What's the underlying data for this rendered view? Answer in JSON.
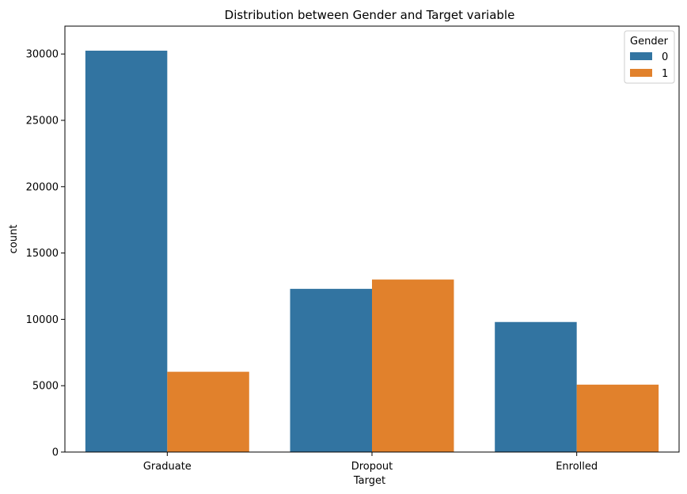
{
  "chart_data": {
    "type": "bar",
    "title": "Distribution between Gender and Target variable",
    "xlabel": "Target",
    "ylabel": "count",
    "categories": [
      "Graduate",
      "Dropout",
      "Enrolled"
    ],
    "series": [
      {
        "name": "0",
        "values": [
          30250,
          12300,
          9800
        ],
        "color": "#3274a1"
      },
      {
        "name": "1",
        "values": [
          6050,
          13000,
          5080
        ],
        "color": "#e1812c"
      }
    ],
    "ylim": [
      0,
      32100
    ],
    "yticks": [
      0,
      5000,
      10000,
      15000,
      20000,
      25000,
      30000
    ],
    "legend": {
      "title": "Gender",
      "placement": "top-right"
    },
    "grid": false
  }
}
